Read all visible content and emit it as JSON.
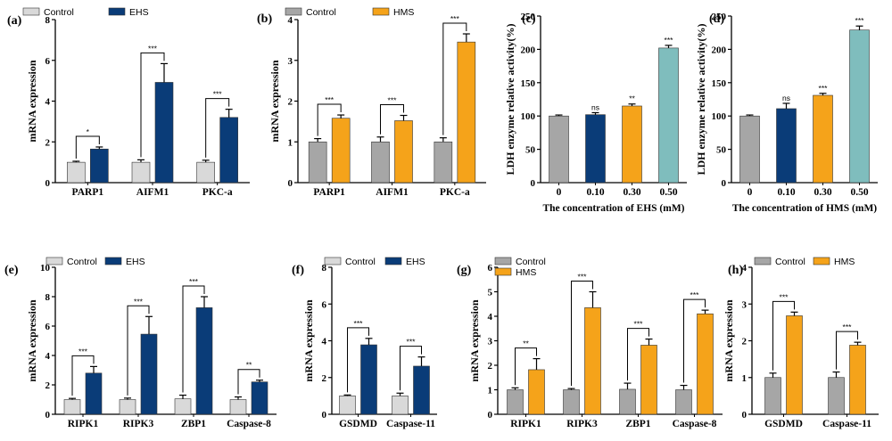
{
  "colors": {
    "control_light": "#d9d9d9",
    "control_grey": "#a6a6a6",
    "ehs_navy": "#0a3c78",
    "hms_orange": "#f5a31a",
    "teal": "#7fbdbd"
  },
  "chart_data": [
    {
      "panel": "(a)",
      "type": "bar",
      "categories": [
        "PARP1",
        "AIFM1",
        "PKC-a"
      ],
      "ylabel": "mRNA expression",
      "xlabel": "",
      "ylim": [
        0,
        8
      ],
      "yticks": [
        0,
        2,
        4,
        6,
        8
      ],
      "series": [
        {
          "name": "Control",
          "color_key": "control_light",
          "values": [
            1.0,
            1.0,
            1.0
          ],
          "errors": [
            0.05,
            0.12,
            0.1
          ]
        },
        {
          "name": "EHS",
          "color_key": "ehs_navy",
          "values": [
            1.65,
            4.92,
            3.2
          ],
          "errors": [
            0.1,
            0.92,
            0.4
          ]
        }
      ],
      "significance": [
        "*",
        "***",
        "***"
      ],
      "legend": "top-left, horizontal"
    },
    {
      "panel": "(b)",
      "type": "bar",
      "categories": [
        "PARP1",
        "AIFM1",
        "PKC-a"
      ],
      "ylabel": "mRNA expression",
      "xlabel": "",
      "ylim": [
        0,
        4
      ],
      "yticks": [
        0,
        1,
        2,
        3,
        4
      ],
      "series": [
        {
          "name": "Control",
          "color_key": "control_grey",
          "values": [
            1.0,
            1.0,
            1.0
          ],
          "errors": [
            0.08,
            0.12,
            0.1
          ]
        },
        {
          "name": "HMS",
          "color_key": "hms_orange",
          "values": [
            1.58,
            1.52,
            3.45
          ],
          "errors": [
            0.08,
            0.13,
            0.2
          ]
        }
      ],
      "significance": [
        "***",
        "***",
        "***"
      ],
      "legend": "top-left, horizontal"
    },
    {
      "panel": "(c)",
      "type": "bar",
      "categories": [
        "0",
        "0.10",
        "0.30",
        "0.50"
      ],
      "ylabel": "LDH enzyme relative activity(%)",
      "xlabel": "The concentration of EHS (mM)",
      "ylim": [
        0,
        250
      ],
      "yticks": [
        0,
        50,
        100,
        150,
        200,
        250
      ],
      "values": [
        100,
        102,
        115,
        202
      ],
      "errors": [
        1.5,
        3,
        3,
        4
      ],
      "bar_color_keys": [
        "control_grey",
        "ehs_navy",
        "hms_orange",
        "teal"
      ],
      "significance": [
        "",
        "ns",
        "**",
        "***"
      ]
    },
    {
      "panel": "(d)",
      "type": "bar",
      "categories": [
        "0",
        "0.10",
        "0.30",
        "0.50"
      ],
      "ylabel": "LDH enzyme relative activity(%)",
      "xlabel": "The concentration of HMS (mM)",
      "ylim": [
        0,
        250
      ],
      "yticks": [
        0,
        50,
        100,
        150,
        200,
        250
      ],
      "values": [
        100,
        111,
        131,
        229
      ],
      "errors": [
        1.5,
        8,
        3,
        6
      ],
      "bar_color_keys": [
        "control_grey",
        "ehs_navy",
        "hms_orange",
        "teal"
      ],
      "significance": [
        "",
        "ns",
        "***",
        "***"
      ]
    },
    {
      "panel": "(e)",
      "type": "bar",
      "categories": [
        "RIPK1",
        "RIPK3",
        "ZBP1",
        "Caspase-8"
      ],
      "ylabel": "mRNA expression",
      "xlabel": "",
      "ylim": [
        0,
        10
      ],
      "yticks": [
        0,
        2,
        4,
        6,
        8,
        10
      ],
      "series": [
        {
          "name": "Control",
          "color_key": "control_light",
          "values": [
            1.0,
            1.0,
            1.05,
            1.0
          ],
          "errors": [
            0.08,
            0.1,
            0.25,
            0.18
          ]
        },
        {
          "name": "EHS",
          "color_key": "ehs_navy",
          "values": [
            2.8,
            5.45,
            7.25,
            2.2
          ],
          "errors": [
            0.45,
            1.2,
            0.75,
            0.12
          ]
        }
      ],
      "significance": [
        "***",
        "***",
        "***",
        "**"
      ],
      "legend": "top-left, horizontal"
    },
    {
      "panel": "(f)",
      "type": "bar",
      "categories": [
        "GSDMD",
        "Caspase-11"
      ],
      "ylabel": "mRNA expression",
      "xlabel": "",
      "ylim": [
        0,
        8
      ],
      "yticks": [
        0,
        2,
        4,
        6,
        8
      ],
      "series": [
        {
          "name": "Control",
          "color_key": "control_light",
          "values": [
            1.0,
            1.0
          ],
          "errors": [
            0.05,
            0.15
          ]
        },
        {
          "name": "EHS",
          "color_key": "ehs_navy",
          "values": [
            3.78,
            2.62
          ],
          "errors": [
            0.35,
            0.5
          ]
        }
      ],
      "significance": [
        "***",
        "***"
      ],
      "legend": "top-left, horizontal"
    },
    {
      "panel": "(g)",
      "type": "bar",
      "categories": [
        "RIPK1",
        "RIPK3",
        "ZBP1",
        "Caspase-8"
      ],
      "ylabel": "mRNA expression",
      "xlabel": "",
      "ylim": [
        0,
        6
      ],
      "yticks": [
        0,
        1,
        2,
        3,
        4,
        5,
        6
      ],
      "series": [
        {
          "name": "Control",
          "color_key": "control_grey",
          "values": [
            1.0,
            1.0,
            1.02,
            1.0
          ],
          "errors": [
            0.08,
            0.05,
            0.25,
            0.18
          ]
        },
        {
          "name": "HMS",
          "color_key": "hms_orange",
          "values": [
            1.82,
            4.35,
            2.82,
            4.1
          ],
          "errors": [
            0.45,
            0.65,
            0.25,
            0.15
          ]
        }
      ],
      "significance": [
        "**",
        "***",
        "***",
        "***"
      ],
      "legend": "top-left, stacked"
    },
    {
      "panel": "(h)",
      "type": "bar",
      "categories": [
        "GSDMD",
        "Caspase-11"
      ],
      "ylabel": "mRNA expression",
      "xlabel": "",
      "ylim": [
        0,
        4
      ],
      "yticks": [
        0,
        1,
        2,
        3,
        4
      ],
      "series": [
        {
          "name": "Control",
          "color_key": "control_grey",
          "values": [
            1.0,
            1.0
          ],
          "errors": [
            0.12,
            0.15
          ]
        },
        {
          "name": "HMS",
          "color_key": "hms_orange",
          "values": [
            2.68,
            1.88
          ],
          "errors": [
            0.1,
            0.08
          ]
        }
      ],
      "significance": [
        "***",
        "***"
      ],
      "legend": "top-left, horizontal"
    }
  ]
}
